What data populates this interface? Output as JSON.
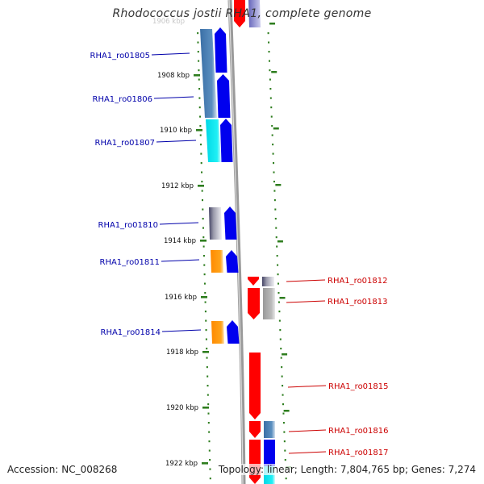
{
  "title": "Rhodococcus jostii RHA1, complete genome",
  "footer": {
    "accession": "Accession: NC_008268",
    "summary": "Topology: linear; Length: 7,804,765 bp; Genes: 7,274"
  },
  "ruler": {
    "faded_label": "1906 kbp",
    "labels": [
      "1908 kbp",
      "1910 kbp",
      "1912 kbp",
      "1914 kbp",
      "1916 kbp",
      "1918 kbp",
      "1920 kbp",
      "1922 kbp"
    ]
  },
  "colors": {
    "forward_label": "#0000aa",
    "reverse_label": "#cc0000",
    "tick": "#2e7d1e",
    "axis": "#888888",
    "blue": "#0000ee",
    "red": "#ff0000",
    "steelblue": "#4a7fb0",
    "cyan": "#00e0e8",
    "orange": "#ff9900",
    "gray": "#aaaaaa",
    "lavender": "#8888cc"
  },
  "genes": {
    "forward": [
      {
        "label": "RHA1_ro01805"
      },
      {
        "label": "RHA1_ro01806"
      },
      {
        "label": "RHA1_ro01807"
      },
      {
        "label": "RHA1_ro01810"
      },
      {
        "label": "RHA1_ro01811"
      },
      {
        "label": "RHA1_ro01814"
      }
    ],
    "reverse": [
      {
        "label": "RHA1_ro01812"
      },
      {
        "label": "RHA1_ro01813"
      },
      {
        "label": "RHA1_ro01815"
      },
      {
        "label": "RHA1_ro01816"
      },
      {
        "label": "RHA1_ro01817"
      }
    ]
  }
}
